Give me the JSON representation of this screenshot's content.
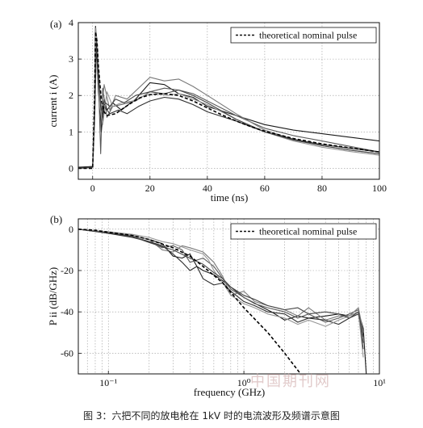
{
  "caption": "图 3：六把不同的放电枪在 1kV 时的电流波形及频谱示意图",
  "watermark": "中国期刊网",
  "chart_data": [
    {
      "type": "line",
      "panel_label": "(a)",
      "xlabel": "time  (ns)",
      "ylabel": "current  i  (A)",
      "xlim": [
        -5,
        100
      ],
      "ylim": [
        -0.3,
        4
      ],
      "x_ticks": [
        0,
        20,
        40,
        60,
        80,
        100
      ],
      "y_ticks": [
        0,
        1,
        2,
        3,
        4
      ],
      "grid": true,
      "legend": "top-right",
      "reference_series": {
        "name": "theoretical nominal pulse",
        "style": "dashed",
        "x": [
          -5,
          0,
          0.7,
          1,
          1.5,
          2,
          3,
          4,
          5,
          8,
          12,
          16,
          20,
          25,
          30,
          35,
          40,
          45,
          50,
          55,
          60,
          70,
          80,
          90,
          100
        ],
        "y": [
          0,
          0,
          2.0,
          3.75,
          3.5,
          2.8,
          1.9,
          1.55,
          1.45,
          1.5,
          1.72,
          1.92,
          2.02,
          2.05,
          2.0,
          1.85,
          1.66,
          1.47,
          1.3,
          1.15,
          1.02,
          0.82,
          0.67,
          0.56,
          0.45
        ]
      },
      "measured_series": [
        {
          "x": [
            -5,
            0,
            0.5,
            1,
            1.3,
            2,
            3,
            4,
            5,
            7,
            10,
            15,
            20,
            25,
            30,
            35,
            40,
            50,
            60,
            70,
            80,
            90,
            100
          ],
          "y": [
            0.03,
            0.05,
            1.0,
            3.9,
            3.5,
            2.1,
            1.2,
            1.9,
            1.6,
            1.8,
            1.6,
            1.9,
            2.35,
            2.3,
            2.05,
            1.95,
            1.7,
            1.45,
            1.2,
            1.05,
            0.95,
            0.85,
            0.75
          ]
        },
        {
          "x": [
            -5,
            0,
            0.6,
            1.2,
            2,
            2.8,
            3.5,
            5,
            7,
            10,
            15,
            20,
            25,
            30,
            35,
            40,
            50,
            60,
            70,
            80,
            90,
            100
          ],
          "y": [
            0.0,
            0.02,
            1.5,
            3.7,
            2.5,
            0.4,
            2.2,
            1.4,
            1.7,
            1.75,
            1.85,
            2.1,
            2.2,
            2.15,
            2.05,
            1.85,
            1.45,
            1.1,
            0.9,
            0.75,
            0.6,
            0.45
          ]
        },
        {
          "x": [
            -5,
            0,
            0.7,
            1.3,
            2,
            3,
            4,
            6,
            8,
            12,
            16,
            20,
            25,
            30,
            35,
            40,
            50,
            60,
            70,
            80,
            90,
            100
          ],
          "y": [
            0.0,
            0.03,
            1.2,
            3.4,
            2.8,
            1.5,
            2.3,
            1.6,
            2.0,
            1.9,
            2.2,
            2.5,
            2.4,
            2.45,
            2.25,
            2.0,
            1.5,
            1.05,
            0.8,
            0.62,
            0.5,
            0.4
          ]
        },
        {
          "x": [
            -5,
            0,
            0.8,
            1.4,
            2.2,
            3,
            4,
            6,
            9,
            12,
            16,
            20,
            25,
            30,
            35,
            40,
            50,
            60,
            70,
            80,
            90,
            100
          ],
          "y": [
            0.02,
            0.05,
            1.8,
            3.6,
            2.4,
            1.0,
            1.7,
            1.5,
            1.6,
            1.5,
            1.7,
            1.85,
            1.95,
            1.9,
            1.75,
            1.55,
            1.3,
            1.0,
            0.8,
            0.65,
            0.55,
            0.45
          ]
        },
        {
          "x": [
            -5,
            0,
            0.5,
            1.1,
            1.8,
            2.5,
            3.5,
            5,
            7,
            10,
            14,
            18,
            22,
            26,
            30,
            35,
            40,
            50,
            60,
            70,
            80,
            90,
            100
          ],
          "y": [
            0.0,
            0.02,
            1.0,
            3.85,
            3.2,
            1.7,
            1.2,
            2.1,
            1.7,
            1.8,
            1.85,
            2.0,
            2.05,
            2.0,
            2.05,
            1.9,
            1.75,
            1.35,
            1.0,
            0.75,
            0.58,
            0.46,
            0.36
          ]
        },
        {
          "x": [
            -5,
            0,
            0.7,
            1.2,
            2,
            3,
            4.5,
            6,
            8,
            11,
            15,
            20,
            25,
            30,
            35,
            40,
            50,
            60,
            70,
            80,
            90,
            100
          ],
          "y": [
            0.0,
            0.03,
            1.6,
            3.3,
            2.6,
            1.6,
            1.8,
            1.7,
            1.9,
            1.8,
            2.0,
            2.1,
            2.05,
            2.15,
            2.0,
            1.8,
            1.35,
            1.0,
            0.78,
            0.62,
            0.5,
            0.4
          ]
        }
      ]
    },
    {
      "type": "line",
      "panel_label": "(b)",
      "xlabel": "frequency  (GHz)",
      "ylabel": "P ii  (dB/GHz)",
      "x_scale": "log",
      "xlim": [
        0.06,
        10
      ],
      "ylim": [
        -70,
        5
      ],
      "x_ticks": [
        0.1,
        1,
        10
      ],
      "x_tick_labels": [
        "10⁻¹",
        "10⁰",
        "10¹"
      ],
      "y_ticks": [
        0,
        -20,
        -40,
        -60
      ],
      "grid": true,
      "legend": "top-right",
      "reference_series": {
        "name": "theoretical nominal pulse",
        "style": "dashed",
        "x": [
          0.06,
          0.08,
          0.1,
          0.15,
          0.2,
          0.3,
          0.4,
          0.5,
          0.7,
          1.0,
          1.5,
          2.0,
          3.0
        ],
        "y": [
          0,
          -0.5,
          -1.5,
          -3,
          -5,
          -9,
          -13,
          -18,
          -26,
          -38,
          -50,
          -60,
          -75
        ]
      },
      "measured_series": [
        {
          "x": [
            0.06,
            0.08,
            0.1,
            0.15,
            0.2,
            0.25,
            0.3,
            0.35,
            0.4,
            0.45,
            0.5,
            0.6,
            0.7,
            0.8,
            1.0,
            1.3,
            1.6,
            2.0,
            2.5,
            3.0,
            4.0,
            5.0,
            6.0,
            7.0,
            7.6,
            8.0
          ],
          "y": [
            0,
            -1,
            -2,
            -3,
            -5,
            -7,
            -13,
            -14,
            -12,
            -18,
            -20,
            -22,
            -25,
            -28,
            -33,
            -37,
            -40,
            -44,
            -42,
            -43,
            -42,
            -41,
            -42,
            -40,
            -48,
            -70
          ]
        },
        {
          "x": [
            0.06,
            0.08,
            0.1,
            0.15,
            0.2,
            0.25,
            0.3,
            0.35,
            0.4,
            0.5,
            0.6,
            0.7,
            0.8,
            1.0,
            1.2,
            1.5,
            2.0,
            2.5,
            3.0,
            4.0,
            5.0,
            6.0,
            7.0,
            7.6
          ],
          "y": [
            0,
            -1,
            -2,
            -3.5,
            -6,
            -9,
            -8,
            -10,
            -16,
            -14,
            -18,
            -24,
            -29,
            -33,
            -36,
            -38,
            -40,
            -43,
            -41,
            -45,
            -43,
            -41,
            -39,
            -55
          ]
        },
        {
          "x": [
            0.06,
            0.1,
            0.15,
            0.2,
            0.25,
            0.3,
            0.35,
            0.4,
            0.5,
            0.6,
            0.7,
            0.8,
            1.0,
            1.2,
            1.5,
            2.0,
            2.5,
            3.0,
            4.0,
            5.0,
            6.0,
            7.0,
            7.6
          ],
          "y": [
            0,
            -1.5,
            -3,
            -5,
            -10,
            -11,
            -8,
            -9,
            -11,
            -16,
            -23,
            -32,
            -30,
            -35,
            -37,
            -39,
            -42,
            -38,
            -44,
            -42,
            -42,
            -38,
            -50
          ]
        },
        {
          "x": [
            0.06,
            0.1,
            0.15,
            0.2,
            0.25,
            0.3,
            0.35,
            0.4,
            0.45,
            0.5,
            0.6,
            0.7,
            0.8,
            1.0,
            1.2,
            1.5,
            2.0,
            2.5,
            3.0,
            4.0,
            5.0,
            6.0,
            7.0,
            7.6
          ],
          "y": [
            0,
            -2,
            -4,
            -6,
            -8,
            -12,
            -16,
            -20,
            -18,
            -24,
            -27,
            -26,
            -30,
            -35,
            -37,
            -40,
            -41,
            -45,
            -43,
            -44,
            -46,
            -43,
            -41,
            -58
          ]
        },
        {
          "x": [
            0.06,
            0.1,
            0.15,
            0.2,
            0.25,
            0.3,
            0.4,
            0.5,
            0.55,
            0.6,
            0.7,
            0.8,
            1.0,
            1.2,
            1.5,
            2.0,
            2.5,
            3.0,
            4.0,
            5.0,
            6.0,
            7.0,
            7.6
          ],
          "y": [
            0,
            -1.2,
            -2.5,
            -4,
            -6,
            -7,
            -10,
            -12,
            -15,
            -20,
            -26,
            -32,
            -36,
            -38,
            -41,
            -43,
            -46,
            -44,
            -47,
            -44,
            -42,
            -40,
            -62
          ]
        },
        {
          "x": [
            0.06,
            0.1,
            0.15,
            0.2,
            0.25,
            0.3,
            0.4,
            0.5,
            0.6,
            0.7,
            0.8,
            1.0,
            1.2,
            1.5,
            2.0,
            2.5,
            3.0,
            4.0,
            5.0,
            6.0,
            7.0,
            7.6
          ],
          "y": [
            0,
            -1.8,
            -3.5,
            -6.5,
            -8.5,
            -10,
            -14,
            -17,
            -21,
            -24,
            -28,
            -32,
            -34,
            -37,
            -39,
            -38,
            -41,
            -40,
            -41,
            -43,
            -40,
            -52
          ]
        }
      ]
    }
  ]
}
